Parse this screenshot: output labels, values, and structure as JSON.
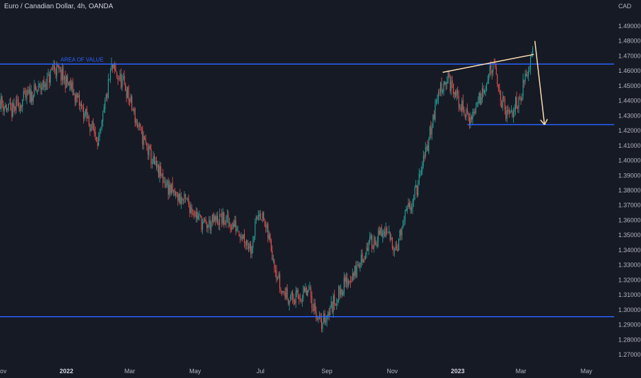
{
  "header": {
    "title": "Euro / Canadian Dollar, 4h, OANDA",
    "currency": "CAD"
  },
  "colors": {
    "background": "#161a25",
    "up_candle": "#26a69a",
    "down_candle": "#ef5350",
    "level_line": "#2962ff",
    "trend_line": "#ffe0b2",
    "text": "#b2b5be"
  },
  "chart_data": {
    "type": "candlestick",
    "title": "Euro / Canadian Dollar, 4h, OANDA",
    "ylabel": "CAD",
    "ylim": [
      1.265,
      1.495
    ],
    "y_ticks": [
      "1.27000",
      "1.28000",
      "1.29000",
      "1.30000",
      "1.31000",
      "1.32000",
      "1.33000",
      "1.34000",
      "1.35000",
      "1.36000",
      "1.37000",
      "1.38000",
      "1.39000",
      "1.40000",
      "1.41000",
      "1.42000",
      "1.43000",
      "1.44000",
      "1.45000",
      "1.46000",
      "1.47000",
      "1.48000",
      "1.49000"
    ],
    "x_ticks": [
      {
        "label": "Nov",
        "date": "2021-11-01",
        "bold": false
      },
      {
        "label": "2022",
        "date": "2022-01-01",
        "bold": true
      },
      {
        "label": "Mar",
        "date": "2022-03-01",
        "bold": false
      },
      {
        "label": "May",
        "date": "2022-05-01",
        "bold": false
      },
      {
        "label": "Jul",
        "date": "2022-07-01",
        "bold": false
      },
      {
        "label": "Sep",
        "date": "2022-09-01",
        "bold": false
      },
      {
        "label": "Nov",
        "date": "2022-11-01",
        "bold": false
      },
      {
        "label": "2023",
        "date": "2023-01-01",
        "bold": true
      },
      {
        "label": "Mar",
        "date": "2023-03-01",
        "bold": false
      },
      {
        "label": "May",
        "date": "2023-05-01",
        "bold": false
      }
    ],
    "xlim": [
      "2021-10-31",
      "2023-05-27"
    ],
    "price_path": [
      [
        "2021-10-31",
        1.44
      ],
      [
        "2021-11-10",
        1.432
      ],
      [
        "2021-11-22",
        1.441
      ],
      [
        "2021-12-05",
        1.447
      ],
      [
        "2021-12-15",
        1.454
      ],
      [
        "2021-12-20",
        1.463
      ],
      [
        "2022-01-05",
        1.449
      ],
      [
        "2022-01-20",
        1.428
      ],
      [
        "2022-02-01",
        1.413
      ],
      [
        "2022-02-06",
        1.437
      ],
      [
        "2022-02-12",
        1.462
      ],
      [
        "2022-02-25",
        1.449
      ],
      [
        "2022-03-10",
        1.42
      ],
      [
        "2022-03-25",
        1.395
      ],
      [
        "2022-04-10",
        1.378
      ],
      [
        "2022-04-25",
        1.371
      ],
      [
        "2022-05-10",
        1.356
      ],
      [
        "2022-05-25",
        1.361
      ],
      [
        "2022-06-10",
        1.355
      ],
      [
        "2022-06-22",
        1.342
      ],
      [
        "2022-06-30",
        1.368
      ],
      [
        "2022-07-10",
        1.345
      ],
      [
        "2022-07-20",
        1.313
      ],
      [
        "2022-08-01",
        1.307
      ],
      [
        "2022-08-15",
        1.312
      ],
      [
        "2022-08-26",
        1.29
      ],
      [
        "2022-09-05",
        1.302
      ],
      [
        "2022-09-15",
        1.315
      ],
      [
        "2022-09-28",
        1.326
      ],
      [
        "2022-10-10",
        1.344
      ],
      [
        "2022-10-25",
        1.352
      ],
      [
        "2022-11-05",
        1.342
      ],
      [
        "2022-11-15",
        1.366
      ],
      [
        "2022-11-25",
        1.383
      ],
      [
        "2022-12-05",
        1.415
      ],
      [
        "2022-12-15",
        1.448
      ],
      [
        "2022-12-22",
        1.455
      ],
      [
        "2023-01-05",
        1.435
      ],
      [
        "2023-01-13",
        1.427
      ],
      [
        "2023-01-25",
        1.449
      ],
      [
        "2023-02-03",
        1.464
      ],
      [
        "2023-02-10",
        1.442
      ],
      [
        "2023-02-17",
        1.428
      ],
      [
        "2023-02-27",
        1.441
      ],
      [
        "2023-03-07",
        1.458
      ],
      [
        "2023-03-12",
        1.478
      ]
    ],
    "annotations": [
      {
        "type": "horizontal_line",
        "name": "area-of-value-line",
        "y": 1.4645,
        "x_from": "2021-10-31",
        "x_to": "2023-05-27",
        "label": "AREA OF VALUE"
      },
      {
        "type": "horizontal_line",
        "name": "support-line",
        "y": 1.2955,
        "x_from": "2021-10-31",
        "x_to": "2023-05-27",
        "label": ""
      },
      {
        "type": "horizontal_line",
        "name": "target-line",
        "y": 1.424,
        "x_from": "2023-01-10",
        "x_to": "2023-05-27",
        "label": ""
      },
      {
        "type": "trend_line",
        "name": "rising-wedge-line",
        "from": [
          "2022-12-18",
          1.459
        ],
        "to": [
          "2023-03-13",
          1.471
        ]
      },
      {
        "type": "arrow",
        "name": "projection-arrow",
        "from": [
          "2023-03-14",
          1.48
        ],
        "to": [
          "2023-03-23",
          1.424
        ]
      }
    ]
  }
}
